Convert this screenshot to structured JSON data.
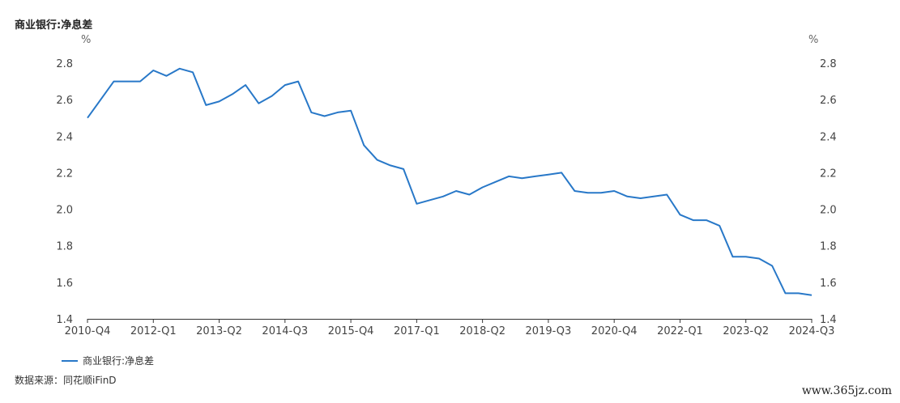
{
  "page": {
    "source_text": "数据来源：同花顺iFinD",
    "watermark": "www.365jz.com"
  },
  "chart_data": {
    "type": "line",
    "title": "商业银行:净息差",
    "y_unit_left": "%",
    "y_unit_right": "%",
    "ylim": [
      1.4,
      2.8
    ],
    "yticks": [
      1.4,
      1.6,
      1.8,
      2.0,
      2.2,
      2.4,
      2.6,
      2.8
    ],
    "ytick_labels": [
      "1.4",
      "1.6",
      "1.8",
      "2.0",
      "2.2",
      "2.4",
      "2.6",
      "2.8"
    ],
    "x": [
      "2010-Q4",
      "2011-Q1",
      "2011-Q2",
      "2011-Q3",
      "2011-Q4",
      "2012-Q1",
      "2012-Q2",
      "2012-Q3",
      "2012-Q4",
      "2013-Q1",
      "2013-Q2",
      "2013-Q3",
      "2013-Q4",
      "2014-Q1",
      "2014-Q2",
      "2014-Q3",
      "2014-Q4",
      "2015-Q1",
      "2015-Q2",
      "2015-Q3",
      "2015-Q4",
      "2016-Q1",
      "2016-Q2",
      "2016-Q3",
      "2016-Q4",
      "2017-Q1",
      "2017-Q2",
      "2017-Q3",
      "2017-Q4",
      "2018-Q1",
      "2018-Q2",
      "2018-Q3",
      "2018-Q4",
      "2019-Q1",
      "2019-Q2",
      "2019-Q3",
      "2019-Q4",
      "2020-Q1",
      "2020-Q2",
      "2020-Q3",
      "2020-Q4",
      "2021-Q1",
      "2021-Q2",
      "2021-Q3",
      "2021-Q4",
      "2022-Q1",
      "2022-Q2",
      "2022-Q3",
      "2022-Q4",
      "2023-Q1",
      "2023-Q2",
      "2023-Q3",
      "2023-Q4",
      "2024-Q1",
      "2024-Q2",
      "2024-Q3"
    ],
    "xtick_labels": [
      "2010-Q4",
      "2012-Q1",
      "2013-Q2",
      "2014-Q3",
      "2015-Q4",
      "2017-Q1",
      "2018-Q2",
      "2019-Q3",
      "2020-Q4",
      "2022-Q1",
      "2023-Q2",
      "2024-Q3"
    ],
    "series": [
      {
        "name": "商业银行:净息差",
        "color": "#2878c8",
        "values": [
          2.5,
          2.6,
          2.7,
          2.7,
          2.7,
          2.76,
          2.73,
          2.77,
          2.75,
          2.57,
          2.59,
          2.63,
          2.68,
          2.58,
          2.62,
          2.68,
          2.7,
          2.53,
          2.51,
          2.53,
          2.54,
          2.35,
          2.27,
          2.24,
          2.22,
          2.03,
          2.05,
          2.07,
          2.1,
          2.08,
          2.12,
          2.15,
          2.18,
          2.17,
          2.18,
          2.19,
          2.2,
          2.1,
          2.09,
          2.09,
          2.1,
          2.07,
          2.06,
          2.07,
          2.08,
          1.97,
          1.94,
          1.94,
          1.91,
          1.74,
          1.74,
          1.73,
          1.69,
          1.54,
          1.54,
          1.53
        ]
      }
    ],
    "grid": false,
    "legend_position": "bottom-left"
  }
}
